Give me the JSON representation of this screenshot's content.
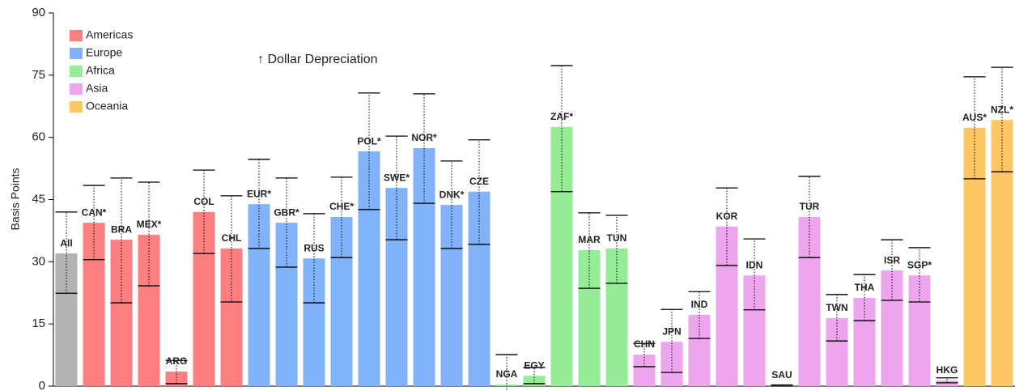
{
  "chart_data": {
    "type": "bar",
    "y_label": "Basis Points",
    "annotation": "↑ Dollar Depreciation",
    "ylim": [
      0,
      90
    ],
    "yticks": [
      0,
      15,
      30,
      45,
      60,
      75,
      90
    ],
    "series": [
      {
        "color": "#b3b3b3",
        "categories": [
          "All"
        ],
        "values": [
          32
        ],
        "lower": [
          22.4
        ],
        "upper": [
          42
        ]
      },
      {
        "name": "Americas",
        "color": "#fd7f7f",
        "categories": [
          "CAN*",
          "BRA",
          "MEX*",
          "ARG",
          "COL",
          "CHL"
        ],
        "values": [
          39.4,
          35.3,
          36.5,
          3.5,
          42,
          33.2
        ],
        "lower": [
          30.5,
          20.1,
          24.2,
          0.6,
          32,
          20.3
        ],
        "upper": [
          48.4,
          50.2,
          49.2,
          6.2,
          52.1,
          45.9
        ]
      },
      {
        "name": "Europe",
        "color": "#80b3fb",
        "categories": [
          "EUR*",
          "GBR*",
          "RUS",
          "CHE*",
          "POL*",
          "SWE*",
          "NOR*",
          "DNK*",
          "CZE"
        ],
        "values": [
          43.9,
          39.4,
          30.8,
          40.8,
          56.6,
          47.8,
          57.4,
          43.7,
          46.9
        ],
        "lower": [
          33.2,
          28.7,
          20.1,
          31,
          42.6,
          35.3,
          44.1,
          33.2,
          34.2
        ],
        "upper": [
          54.7,
          50.2,
          41.6,
          50.4,
          70.7,
          60.3,
          70.5,
          54.3,
          59.4
        ]
      },
      {
        "name": "Africa",
        "color": "#96eb96",
        "categories": [
          "NGA",
          "EGY",
          "ZAF*",
          "MAR",
          "TUN"
        ],
        "values": [
          0.4,
          2.5,
          62.5,
          32.8,
          33.2
        ],
        "lower": [
          -1.5,
          0.6,
          46.9,
          23.6,
          24.8
        ],
        "upper": [
          7.6,
          4.5,
          77.3,
          41.8,
          41.2
        ]
      },
      {
        "name": "Asia",
        "color": "#eea5ee",
        "categories": [
          "CHN",
          "JPN",
          "IND",
          "KOR",
          "IDN",
          "SAU",
          "TUR",
          "TWN",
          "THA",
          "ISR",
          "SGP*",
          "HKG"
        ],
        "values": [
          7.6,
          10.7,
          17.2,
          38.5,
          26.7,
          0.2,
          40.8,
          16.4,
          21.3,
          27.9,
          26.7,
          1.4
        ],
        "lower": [
          4.7,
          3.3,
          11.5,
          29.1,
          18.4,
          0,
          31,
          10.9,
          15.8,
          20.7,
          20.3,
          0.8
        ],
        "upper": [
          10.3,
          18.5,
          22.8,
          47.8,
          35.5,
          0.3,
          50.6,
          22.1,
          26.9,
          35.3,
          33.4,
          2.0
        ]
      },
      {
        "name": "Oceania",
        "color": "#fec764",
        "categories": [
          "AUS*",
          "NZL*"
        ],
        "values": [
          62.3,
          64.2
        ],
        "lower": [
          50,
          51.7
        ],
        "upper": [
          74.6,
          76.9
        ]
      }
    ]
  }
}
